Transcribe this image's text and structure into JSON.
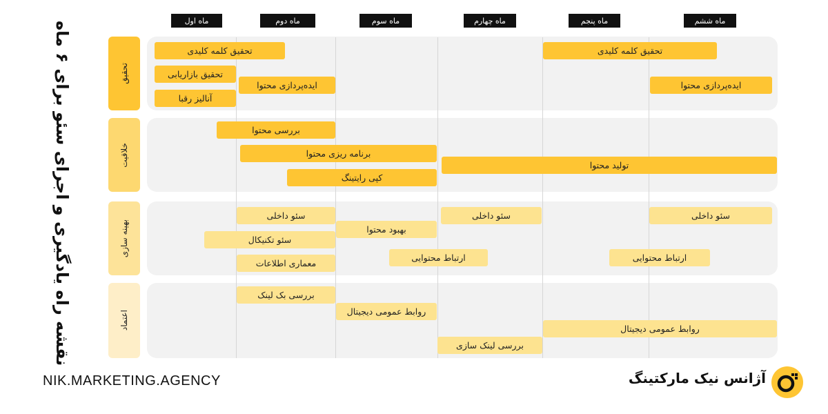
{
  "title": "نقشه راه یادگیری و اجرای سئو برای ۶ ماه",
  "months": [
    "ماه اول",
    "ماه دوم",
    "ماه سوم",
    "ماه چهارم",
    "ماه پنجم",
    "ماه ششم"
  ],
  "lanes": [
    {
      "label": "تحقیق"
    },
    {
      "label": "خلاقیت"
    },
    {
      "label": "بهینه سازی"
    },
    {
      "label": "اعتماد"
    }
  ],
  "bars": [
    {
      "label": "تحقیق کلمه کلیدی"
    },
    {
      "label": "تحقیق بازاریابی"
    },
    {
      "label": "آنالیز رقبا"
    },
    {
      "label": "ایده‌پردازی محتوا"
    },
    {
      "label": "تحقیق کلمه کلیدی"
    },
    {
      "label": "ایده‌پردازی محتوا"
    },
    {
      "label": "بررسی محتوا"
    },
    {
      "label": "برنامه ریزی محتوا"
    },
    {
      "label": "کپی رایتینگ"
    },
    {
      "label": "تولید محتوا"
    },
    {
      "label": "سئو داخلی"
    },
    {
      "label": "سئو تکنیکال"
    },
    {
      "label": "معماری اطلاعات"
    },
    {
      "label": "بهبود محتوا"
    },
    {
      "label": "سئو داخلی"
    },
    {
      "label": "ارتباط محتوایی"
    },
    {
      "label": "سئو داخلی"
    },
    {
      "label": "ارتباط محتوایی"
    },
    {
      "label": "بررسی بک لینک"
    },
    {
      "label": "روابط عمومی دیجیتال"
    },
    {
      "label": "بررسی لینک سازی"
    },
    {
      "label": "روابط عمومی دیجیتال"
    }
  ],
  "footer": {
    "website": "NIK.MARKETING.AGENCY",
    "brand": "آژانس نیک مارکتینگ"
  },
  "colors": {
    "accent": "#fec533",
    "accent_light": "#fde390",
    "lane_bg": "#f2f2f2",
    "text": "#111111"
  },
  "icons": [
    "nik-logo-icon"
  ]
}
